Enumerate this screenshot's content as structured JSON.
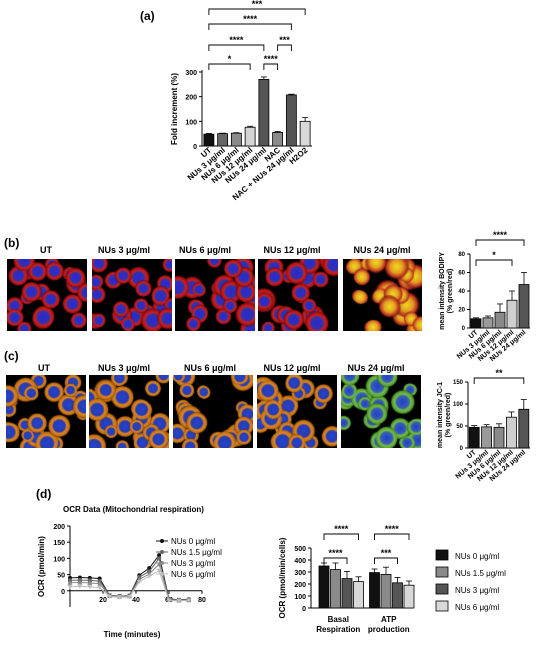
{
  "panel_labels": {
    "a": "(a)",
    "b": "(b)",
    "c": "(c)",
    "d": "(d)"
  },
  "micrographs_b": [
    "UT",
    "NUs 3 μg/ml",
    "NUs 6 μg/ml",
    "NUs 12 μg/ml",
    "NUs 24 μg/ml"
  ],
  "micrographs_c": [
    "UT",
    "NUs 3 μg/ml",
    "NUs 6 μg/ml",
    "NUs 12 μg/ml",
    "NUs 24 μg/ml"
  ],
  "colors": {
    "black": "#111111",
    "dark": "#555555",
    "mid": "#8a8a8a",
    "light": "#d8d8d8",
    "white": "#f2f2f2"
  },
  "chart_data": [
    {
      "id": "a",
      "type": "bar",
      "ylabel": "Fold increment (%)",
      "ylim": [
        0,
        300
      ],
      "yticks": [
        0,
        100,
        200,
        300
      ],
      "categories": [
        "UT",
        "NUs 3 μg/ml",
        "NUs 6 μg/ml",
        "NUs 12 μg/ml",
        "NUs 24 μg/ml",
        "NAC",
        "NAC + NUs 24 μg/ml",
        "H2O2"
      ],
      "values": [
        48,
        50,
        52,
        76,
        270,
        55,
        207,
        100
      ],
      "errors": [
        3,
        2,
        2,
        4,
        10,
        4,
        3,
        15
      ],
      "bar_colors": [
        "#111111",
        "#666666",
        "#8a8a8a",
        "#d4d4d4",
        "#555555",
        "#8a8a8a",
        "#555555",
        "#d8d8d8"
      ],
      "significance": [
        {
          "from": 0,
          "to": 3,
          "label": "*"
        },
        {
          "from": 0,
          "to": 4,
          "label": "****"
        },
        {
          "from": 0,
          "to": 6,
          "label": "****"
        },
        {
          "from": 0,
          "to": 7,
          "label": "***"
        },
        {
          "from": 4,
          "to": 5,
          "label": "****"
        },
        {
          "from": 5,
          "to": 6,
          "label": "***"
        }
      ]
    },
    {
      "id": "b",
      "type": "bar",
      "ylabel": "mean intensity BODIPY\n(% green/red)",
      "ylim": [
        0,
        80
      ],
      "yticks": [
        0,
        20,
        40,
        60,
        80
      ],
      "categories": [
        "UT",
        "NUs 3 μg/ml",
        "NUs 6 μg/ml",
        "NUs 12 μg/ml",
        "NUs 24 μg/ml"
      ],
      "values": [
        10,
        11,
        17,
        30,
        47
      ],
      "errors": [
        1,
        2,
        9,
        10,
        13
      ],
      "bar_colors": [
        "#111111",
        "#9a9a9a",
        "#8a8a8a",
        "#cfcfcf",
        "#555555"
      ],
      "significance": [
        {
          "from": 0,
          "to": 3,
          "label": "*"
        },
        {
          "from": 0,
          "to": 4,
          "label": "****"
        }
      ]
    },
    {
      "id": "c",
      "type": "bar",
      "ylabel": "mean intensity JC-1\n(% green/red)",
      "ylim": [
        0,
        150
      ],
      "yticks": [
        0,
        50,
        100,
        150
      ],
      "categories": [
        "UT",
        "NUs 3 μg/ml",
        "NUs 6 μg/ml",
        "NUs 12 μg/ml",
        "NUs 24 μg/ml"
      ],
      "values": [
        47,
        48,
        47,
        70,
        88
      ],
      "errors": [
        4,
        5,
        8,
        12,
        22
      ],
      "bar_colors": [
        "#111111",
        "#9a9a9a",
        "#8a8a8a",
        "#cfcfcf",
        "#555555"
      ],
      "significance": [
        {
          "from": 0,
          "to": 4,
          "label": "**"
        }
      ]
    },
    {
      "id": "d_line",
      "type": "line",
      "title": "OCR Data (Mitochondrial respiration)",
      "xlabel": "Time (minutes)",
      "ylabel": "OCR (pmol/min)",
      "xlim": [
        0,
        80
      ],
      "ylim": [
        -50,
        200
      ],
      "xticks": [
        20,
        40,
        60,
        80
      ],
      "yticks": [
        0,
        50,
        100,
        150,
        200
      ],
      "x": [
        0,
        6,
        12,
        18,
        24,
        30,
        36,
        42,
        48,
        54,
        60,
        66,
        72
      ],
      "series": [
        {
          "name": "NUs 0 μg/ml",
          "marker": "circle",
          "color": "#111111",
          "values": [
            40,
            41,
            40,
            38,
            -15,
            -17,
            -15,
            48,
            70,
            110,
            -25,
            -28,
            -26
          ]
        },
        {
          "name": "NUs 1.5 μg/ml",
          "marker": "square",
          "color": "#666666",
          "values": [
            32,
            33,
            32,
            30,
            -14,
            -16,
            -15,
            42,
            60,
            100,
            -26,
            -28,
            -27
          ]
        },
        {
          "name": "NUs 3 μg/ml",
          "marker": "triangle",
          "color": "#8a8a8a",
          "values": [
            25,
            26,
            24,
            22,
            -16,
            -18,
            -17,
            35,
            52,
            82,
            -28,
            -30,
            -29
          ]
        },
        {
          "name": "NUs 6 μg/ml",
          "marker": "triangle-down",
          "color": "#bdbdbd",
          "values": [
            12,
            14,
            12,
            10,
            -18,
            -20,
            -19,
            28,
            45,
            62,
            -30,
            -31,
            -30
          ]
        }
      ]
    },
    {
      "id": "d_bar",
      "type": "bar",
      "ylabel": "OCR (pmol/min/cells)",
      "ylim": [
        0,
        500
      ],
      "yticks": [
        0,
        100,
        200,
        300,
        400,
        500
      ],
      "categories": [
        "Basal\nRespiration",
        "ATP\nproduction"
      ],
      "series": [
        {
          "name": "NUs 0 μg/ml",
          "color": "#111111",
          "values": [
            350,
            295
          ],
          "errors": [
            25,
            30
          ]
        },
        {
          "name": "NUs 1.5 μg/ml",
          "color": "#8a8a8a",
          "values": [
            320,
            280
          ],
          "errors": [
            55,
            60
          ]
        },
        {
          "name": "NUs 3 μg/ml",
          "color": "#555555",
          "values": [
            245,
            210
          ],
          "errors": [
            60,
            45
          ]
        },
        {
          "name": "NUs 6 μg/ml",
          "color": "#d8d8d8",
          "values": [
            220,
            190
          ],
          "errors": [
            40,
            35
          ]
        }
      ],
      "significance": [
        {
          "group": 0,
          "from": 0,
          "to": 2,
          "label": "****"
        },
        {
          "group": 0,
          "from": 0,
          "to": 3,
          "label": "****"
        },
        {
          "group": 1,
          "from": 0,
          "to": 2,
          "label": "***"
        },
        {
          "group": 1,
          "from": 0,
          "to": 3,
          "label": "****"
        }
      ]
    }
  ]
}
